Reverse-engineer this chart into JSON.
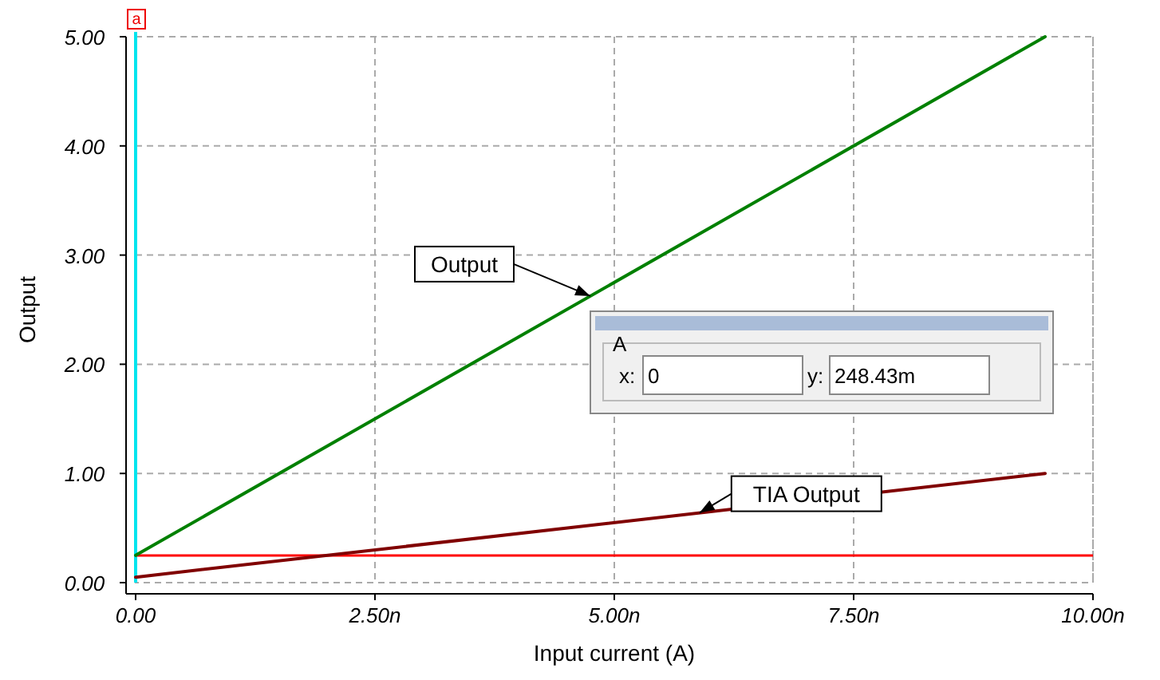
{
  "chart_data": {
    "type": "line",
    "xlabel": "Input current (A)",
    "ylabel": "Output",
    "x": [
      0,
      9.5
    ],
    "series": [
      {
        "name": "Output",
        "color": "#008000",
        "values": [
          0.25,
          5.0
        ]
      },
      {
        "name": "TIA Output",
        "color": "#800000",
        "values": [
          0.05,
          1.0
        ]
      }
    ],
    "xlim": [
      0,
      10
    ],
    "ylim": [
      0,
      5
    ],
    "xticks": [
      {
        "value": 0,
        "label": "0.00"
      },
      {
        "value": 2.5,
        "label": "2.50n"
      },
      {
        "value": 5,
        "label": "5.00n"
      },
      {
        "value": 7.5,
        "label": "7.50n"
      },
      {
        "value": 10,
        "label": "10.00n"
      }
    ],
    "yticks": [
      {
        "value": 0,
        "label": "0.00"
      },
      {
        "value": 1,
        "label": "1.00"
      },
      {
        "value": 2,
        "label": "2.00"
      },
      {
        "value": 3,
        "label": "3.00"
      },
      {
        "value": 4,
        "label": "4.00"
      },
      {
        "value": 5,
        "label": "5.00"
      }
    ],
    "ref_lines": [
      {
        "axis": "x",
        "value": 0,
        "label": "a",
        "color": "#00e5ee"
      },
      {
        "axis": "y",
        "value": 0.24843,
        "color": "#ff0000"
      }
    ],
    "annotations": [
      "A",
      "x:",
      "0",
      "y:",
      "248.43m"
    ],
    "grid": true,
    "marker": "none",
    "line_style": "solid"
  }
}
